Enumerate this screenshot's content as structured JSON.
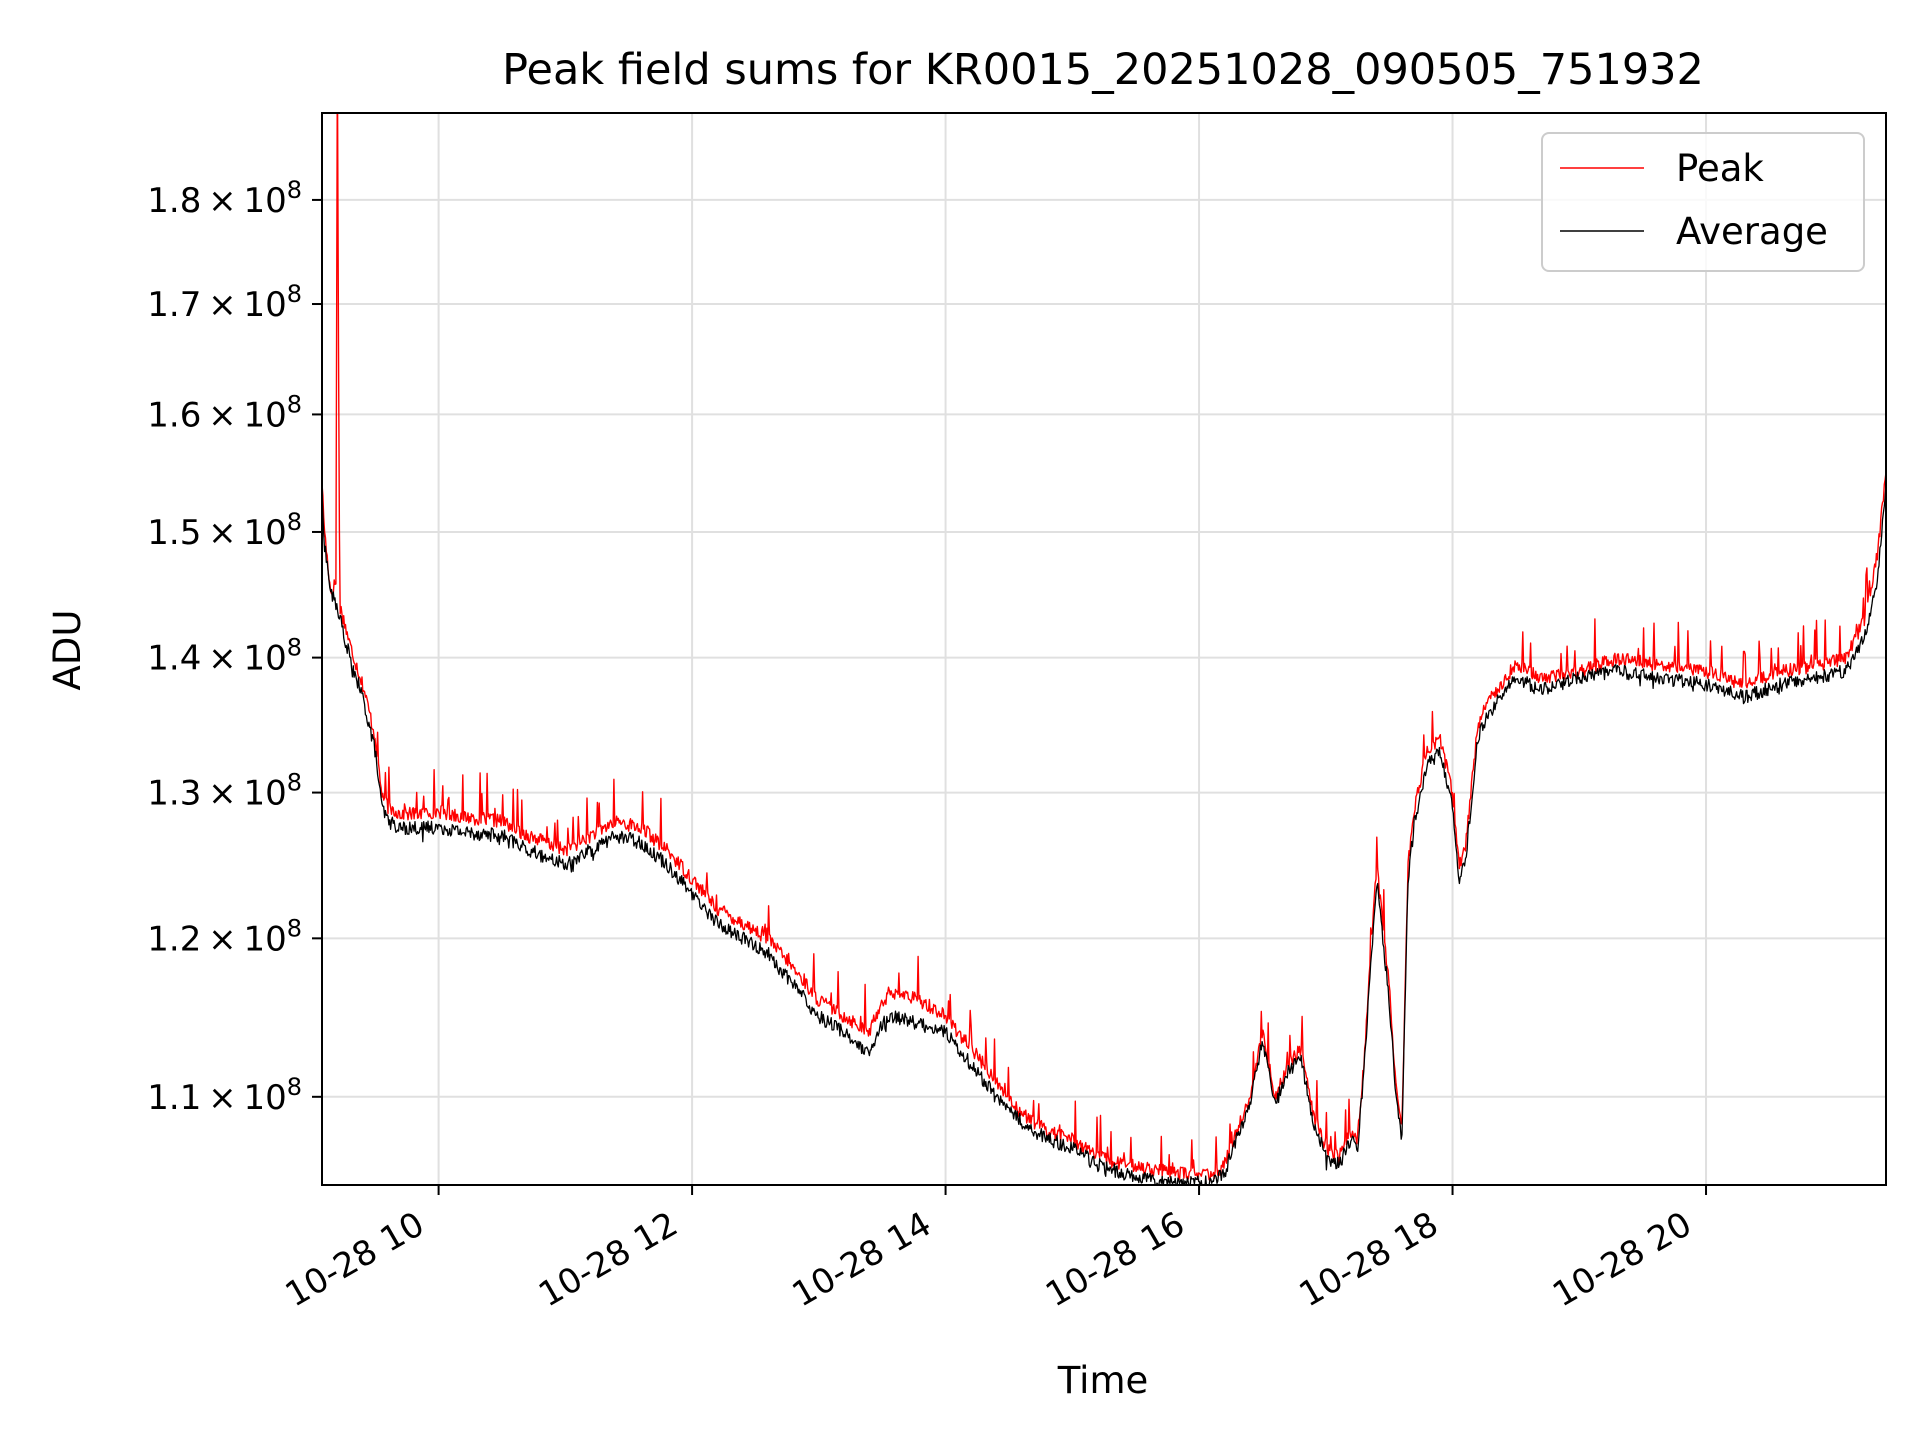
{
  "chart_data": {
    "type": "line",
    "title": "Peak field sums for KR0015_20251028_090505_751932",
    "xlabel": "Time",
    "ylabel": "ADU",
    "y_scale": "log",
    "grid": true,
    "legend_position": "top-right",
    "x_range_hours": [
      9.08,
      21.42
    ],
    "ylim": [
      104800000,
      188800000
    ],
    "x_ticks": [
      {
        "value": 10,
        "label": "10-28 10"
      },
      {
        "value": 12,
        "label": "10-28 12"
      },
      {
        "value": 14,
        "label": "10-28 14"
      },
      {
        "value": 16,
        "label": "10-28 16"
      },
      {
        "value": 18,
        "label": "10-28 18"
      },
      {
        "value": 20,
        "label": "10-28 20"
      }
    ],
    "y_ticks": [
      {
        "value": 110000000,
        "mantissa": "1.1",
        "exponent": "8"
      },
      {
        "value": 120000000,
        "mantissa": "1.2",
        "exponent": "8"
      },
      {
        "value": 130000000,
        "mantissa": "1.3",
        "exponent": "8"
      },
      {
        "value": 140000000,
        "mantissa": "1.4",
        "exponent": "8"
      },
      {
        "value": 150000000,
        "mantissa": "1.5",
        "exponent": "8"
      },
      {
        "value": 160000000,
        "mantissa": "1.6",
        "exponent": "8"
      },
      {
        "value": 170000000,
        "mantissa": "1.7",
        "exponent": "8"
      },
      {
        "value": 180000000,
        "mantissa": "1.8",
        "exponent": "8"
      }
    ],
    "series": [
      {
        "name": "Peak",
        "color": "#ff0000",
        "x": [
          9.08,
          9.1,
          9.15,
          9.19,
          9.2,
          9.22,
          9.25,
          9.3,
          9.4,
          9.5,
          9.55,
          9.6,
          9.7,
          9.8,
          10.0,
          10.2,
          10.5,
          10.7,
          11.0,
          11.2,
          11.4,
          11.6,
          11.8,
          12.0,
          12.2,
          12.4,
          12.6,
          12.8,
          13.0,
          13.2,
          13.4,
          13.5,
          13.6,
          13.8,
          14.0,
          14.2,
          14.4,
          14.6,
          14.8,
          15.0,
          15.2,
          15.4,
          15.6,
          15.8,
          16.0,
          16.1,
          16.2,
          16.3,
          16.4,
          16.5,
          16.6,
          16.7,
          16.8,
          16.9,
          17.0,
          17.1,
          17.2,
          17.25,
          17.3,
          17.4,
          17.5,
          17.55,
          17.6,
          17.65,
          17.7,
          17.8,
          17.9,
          18.0,
          18.05,
          18.1,
          18.2,
          18.3,
          18.5,
          18.7,
          19.0,
          19.3,
          19.6,
          20.0,
          20.3,
          20.6,
          20.9,
          21.1,
          21.25,
          21.35,
          21.42
        ],
        "y": [
          154000000,
          150000000,
          145000000,
          146000000,
          188800000,
          144000000,
          143000000,
          141000000,
          138000000,
          134000000,
          130000000,
          129000000,
          128500000,
          128500000,
          128700000,
          128300000,
          128000000,
          127000000,
          126000000,
          127000000,
          128000000,
          127500000,
          126000000,
          124000000,
          122000000,
          121000000,
          120000000,
          118000000,
          116000000,
          115000000,
          114000000,
          116000000,
          116500000,
          116000000,
          115000000,
          113000000,
          111000000,
          109000000,
          108000000,
          107500000,
          106500000,
          106000000,
          105800000,
          105500000,
          105500000,
          105300000,
          106000000,
          108000000,
          110000000,
          114000000,
          110000000,
          112000000,
          113000000,
          109000000,
          107000000,
          106500000,
          108000000,
          107500000,
          112000000,
          125000000,
          117000000,
          111000000,
          108000000,
          125000000,
          129000000,
          133000000,
          134000000,
          130000000,
          125000000,
          126000000,
          135000000,
          137000000,
          139500000,
          138500000,
          139000000,
          140000000,
          139500000,
          139000000,
          138000000,
          139000000,
          139500000,
          140000000,
          143000000,
          148000000,
          155000000
        ]
      },
      {
        "name": "Average",
        "color": "#000000",
        "x": [
          9.08,
          9.1,
          9.15,
          9.2,
          9.25,
          9.3,
          9.4,
          9.5,
          9.55,
          9.6,
          9.7,
          9.8,
          10.0,
          10.2,
          10.5,
          10.7,
          11.0,
          11.2,
          11.4,
          11.6,
          11.8,
          12.0,
          12.2,
          12.4,
          12.6,
          12.8,
          13.0,
          13.2,
          13.4,
          13.5,
          13.6,
          13.8,
          14.0,
          14.2,
          14.4,
          14.6,
          14.8,
          15.0,
          15.2,
          15.4,
          15.6,
          15.8,
          16.0,
          16.1,
          16.2,
          16.3,
          16.4,
          16.5,
          16.6,
          16.7,
          16.8,
          16.9,
          17.0,
          17.1,
          17.2,
          17.25,
          17.3,
          17.4,
          17.5,
          17.55,
          17.6,
          17.65,
          17.7,
          17.8,
          17.9,
          18.0,
          18.05,
          18.1,
          18.2,
          18.3,
          18.5,
          18.7,
          19.0,
          19.3,
          19.6,
          20.0,
          20.3,
          20.6,
          20.9,
          21.1,
          21.25,
          21.35,
          21.42
        ],
        "y": [
          153500000,
          149000000,
          145000000,
          144000000,
          142000000,
          140000000,
          137000000,
          133000000,
          129000000,
          128000000,
          127500000,
          127500000,
          127600000,
          127200000,
          127000000,
          126000000,
          125000000,
          126000000,
          127000000,
          126500000,
          125000000,
          123000000,
          121000000,
          120000000,
          119000000,
          117000000,
          115000000,
          114000000,
          112500000,
          114500000,
          115000000,
          114500000,
          114000000,
          112000000,
          110000000,
          108500000,
          107500000,
          107000000,
          106000000,
          105500000,
          105200000,
          105000000,
          105000000,
          104900000,
          105500000,
          107500000,
          109500000,
          113500000,
          109500000,
          111500000,
          112500000,
          108500000,
          106500000,
          106000000,
          107500000,
          107000000,
          111500000,
          124000000,
          116000000,
          110500000,
          107500000,
          124000000,
          128000000,
          132000000,
          133000000,
          129000000,
          124000000,
          125000000,
          134000000,
          136000000,
          138500000,
          137500000,
          138500000,
          139000000,
          138500000,
          138000000,
          137000000,
          138000000,
          138500000,
          139000000,
          141500000,
          146000000,
          154000000
        ]
      }
    ]
  }
}
